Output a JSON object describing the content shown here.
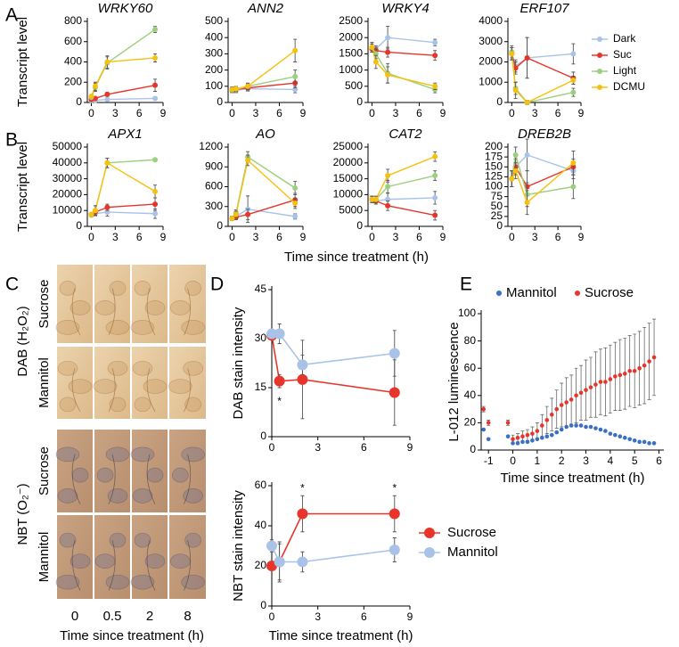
{
  "panel_labels": [
    "A",
    "B",
    "C",
    "D",
    "E"
  ],
  "photo_panel": {
    "stains": [
      {
        "label": "DAB (H₂O₂)",
        "rows": [
          "Sucrose",
          "Mannitol"
        ]
      },
      {
        "label": "NBT (O₂⁻)",
        "rows": [
          "Sucrose",
          "Mannitol"
        ]
      }
    ],
    "columns": [
      "0",
      "0.5",
      "2",
      "8"
    ],
    "xlabel": "Time since treatment (h)"
  },
  "chart_data": [
    {
      "type": "line",
      "title": "WRKY60",
      "ylabel": "Transcript level",
      "x": [
        0,
        0.5,
        2,
        8
      ],
      "xlim": [
        -0.5,
        9
      ],
      "xticks": [
        0,
        3,
        6,
        9
      ],
      "ylim": [
        0,
        800
      ],
      "yticks": [
        0,
        200,
        400,
        600,
        800
      ],
      "series": [
        {
          "name": "Dark",
          "color": "#a9c3e8",
          "values": [
            20,
            20,
            30,
            40
          ],
          "errors": [
            5,
            5,
            10,
            15
          ]
        },
        {
          "name": "Suc",
          "color": "#e8352b",
          "values": [
            30,
            40,
            80,
            170
          ],
          "errors": [
            10,
            10,
            20,
            60
          ]
        },
        {
          "name": "Light",
          "color": "#9ccf7e",
          "values": [
            50,
            150,
            390,
            720
          ],
          "errors": [
            20,
            40,
            60,
            30
          ]
        },
        {
          "name": "DCMU",
          "color": "#f5c10e",
          "values": [
            60,
            160,
            400,
            440
          ],
          "errors": [
            20,
            40,
            60,
            40
          ]
        }
      ]
    },
    {
      "type": "line",
      "title": "ANN2",
      "x": [
        0,
        0.5,
        2,
        8
      ],
      "xlim": [
        -0.5,
        9
      ],
      "xticks": [
        0,
        3,
        6,
        9
      ],
      "ylim": [
        0,
        500
      ],
      "yticks": [
        0,
        100,
        200,
        300,
        400,
        500
      ],
      "series": [
        {
          "name": "Dark",
          "color": "#a9c3e8",
          "values": [
            75,
            75,
            85,
            80
          ],
          "errors": [
            15,
            15,
            15,
            20
          ]
        },
        {
          "name": "Suc",
          "color": "#e8352b",
          "values": [
            80,
            80,
            90,
            120
          ],
          "errors": [
            15,
            15,
            15,
            30
          ]
        },
        {
          "name": "Light",
          "color": "#9ccf7e",
          "values": [
            75,
            80,
            100,
            160
          ],
          "errors": [
            15,
            15,
            15,
            40
          ]
        },
        {
          "name": "DCMU",
          "color": "#f5c10e",
          "values": [
            80,
            85,
            100,
            320
          ],
          "errors": [
            15,
            15,
            20,
            70
          ]
        }
      ]
    },
    {
      "type": "line",
      "title": "WRKY4",
      "x": [
        0,
        0.5,
        2,
        8
      ],
      "xlim": [
        -0.5,
        9
      ],
      "xticks": [
        0,
        3,
        6,
        9
      ],
      "ylim": [
        0,
        2500
      ],
      "yticks": [
        0,
        500,
        1000,
        1500,
        2000,
        2500
      ],
      "series": [
        {
          "name": "Dark",
          "color": "#a9c3e8",
          "values": [
            1700,
            1650,
            2000,
            1850
          ],
          "errors": [
            100,
            100,
            350,
            100
          ]
        },
        {
          "name": "Suc",
          "color": "#e8352b",
          "values": [
            1650,
            1600,
            1550,
            1450
          ],
          "errors": [
            100,
            100,
            150,
            150
          ]
        },
        {
          "name": "Light",
          "color": "#9ccf7e",
          "values": [
            1700,
            1500,
            900,
            400
          ],
          "errors": [
            150,
            150,
            300,
            100
          ]
        },
        {
          "name": "DCMU",
          "color": "#f5c10e",
          "values": [
            1700,
            1250,
            850,
            500
          ],
          "errors": [
            150,
            200,
            250,
            100
          ]
        }
      ]
    },
    {
      "type": "line",
      "title": "ERF107",
      "legend": "right",
      "x": [
        0,
        0.5,
        2,
        8
      ],
      "xlim": [
        -0.5,
        9
      ],
      "xticks": [
        0,
        3,
        6,
        9
      ],
      "ylim": [
        0,
        4000
      ],
      "yticks": [
        0,
        1000,
        2000,
        3000,
        4000
      ],
      "series": [
        {
          "name": "Dark",
          "color": "#a9c3e8",
          "values": [
            2400,
            1800,
            2200,
            2400
          ],
          "errors": [
            300,
            300,
            1000,
            500
          ]
        },
        {
          "name": "Suc",
          "color": "#e8352b",
          "values": [
            2400,
            1700,
            2200,
            1200
          ],
          "errors": [
            300,
            300,
            1000,
            300
          ]
        },
        {
          "name": "Light",
          "color": "#9ccf7e",
          "values": [
            2500,
            700,
            0,
            500
          ],
          "errors": [
            300,
            300,
            100,
            200
          ]
        },
        {
          "name": "DCMU",
          "color": "#f5c10e",
          "values": [
            2400,
            600,
            0,
            1100
          ],
          "errors": [
            300,
            400,
            100,
            200
          ]
        }
      ]
    },
    {
      "type": "line",
      "title": "APX1",
      "ylabel": "Transcript level",
      "xlabel": "Time since treatment (h)",
      "x": [
        0,
        0.5,
        2,
        8
      ],
      "xlim": [
        -0.5,
        9
      ],
      "xticks": [
        0,
        3,
        6,
        9
      ],
      "ylim": [
        0,
        50000
      ],
      "yticks": [
        0,
        10000,
        20000,
        30000,
        40000,
        50000
      ],
      "series": [
        {
          "name": "Dark",
          "color": "#a9c3e8",
          "values": [
            7500,
            8000,
            9000,
            8000
          ],
          "errors": [
            1000,
            1500,
            2500,
            3000
          ]
        },
        {
          "name": "Suc",
          "color": "#e8352b",
          "values": [
            7500,
            9000,
            12000,
            14000
          ],
          "errors": [
            1000,
            2000,
            2000,
            4000
          ]
        },
        {
          "name": "Light",
          "color": "#9ccf7e",
          "values": [
            7000,
            10000,
            40000,
            42000
          ],
          "errors": [
            1000,
            3000,
            3000,
            1000
          ]
        },
        {
          "name": "DCMU",
          "color": "#f5c10e",
          "values": [
            7500,
            10000,
            40000,
            22000
          ],
          "errors": [
            1000,
            3000,
            3000,
            4000
          ]
        }
      ]
    },
    {
      "type": "line",
      "title": "AO",
      "x": [
        0,
        0.5,
        2,
        8
      ],
      "xlim": [
        -0.5,
        9
      ],
      "xticks": [
        0,
        3,
        6,
        9
      ],
      "ylim": [
        0,
        1200
      ],
      "yticks": [
        0,
        300,
        600,
        900,
        1200
      ],
      "series": [
        {
          "name": "Dark",
          "color": "#a9c3e8",
          "values": [
            120,
            150,
            260,
            150
          ],
          "errors": [
            30,
            40,
            200,
            40
          ]
        },
        {
          "name": "Suc",
          "color": "#e8352b",
          "values": [
            120,
            140,
            180,
            400
          ],
          "errors": [
            30,
            40,
            80,
            100
          ]
        },
        {
          "name": "Light",
          "color": "#9ccf7e",
          "values": [
            120,
            200,
            1050,
            580
          ],
          "errors": [
            30,
            50,
            80,
            100
          ]
        },
        {
          "name": "DCMU",
          "color": "#f5c10e",
          "values": [
            120,
            180,
            1000,
            350
          ],
          "errors": [
            30,
            50,
            80,
            80
          ]
        }
      ]
    },
    {
      "type": "line",
      "title": "CAT2",
      "x": [
        0,
        0.5,
        2,
        8
      ],
      "xlim": [
        -0.5,
        9
      ],
      "xticks": [
        0,
        3,
        6,
        9
      ],
      "ylim": [
        0,
        25000
      ],
      "yticks": [
        0,
        5000,
        10000,
        15000,
        20000,
        25000
      ],
      "series": [
        {
          "name": "Dark",
          "color": "#a9c3e8",
          "values": [
            8500,
            8000,
            8500,
            9000
          ],
          "errors": [
            1000,
            1000,
            2000,
            2000
          ]
        },
        {
          "name": "Suc",
          "color": "#e8352b",
          "values": [
            8500,
            8000,
            6500,
            3500
          ],
          "errors": [
            1000,
            1000,
            1500,
            1500
          ]
        },
        {
          "name": "Light",
          "color": "#9ccf7e",
          "values": [
            8500,
            8500,
            12500,
            16000
          ],
          "errors": [
            1000,
            1000,
            2000,
            1500
          ]
        },
        {
          "name": "DCMU",
          "color": "#f5c10e",
          "values": [
            8500,
            8500,
            16000,
            22000
          ],
          "errors": [
            1000,
            1000,
            2000,
            1500
          ]
        }
      ]
    },
    {
      "type": "line",
      "title": "DREB2B",
      "x": [
        0,
        0.5,
        2,
        8
      ],
      "xlim": [
        -0.5,
        9
      ],
      "xticks": [
        0,
        3,
        6,
        9
      ],
      "ylim": [
        0,
        200
      ],
      "yticks": [
        0,
        25,
        50,
        75,
        100,
        125,
        150,
        175,
        200
      ],
      "series": [
        {
          "name": "Dark",
          "color": "#a9c3e8",
          "values": [
            120,
            150,
            180,
            140
          ],
          "errors": [
            20,
            20,
            40,
            20
          ]
        },
        {
          "name": "Suc",
          "color": "#e8352b",
          "values": [
            120,
            150,
            100,
            150
          ],
          "errors": [
            20,
            20,
            40,
            20
          ]
        },
        {
          "name": "Light",
          "color": "#9ccf7e",
          "values": [
            120,
            180,
            80,
            100
          ],
          "errors": [
            20,
            20,
            30,
            30
          ]
        },
        {
          "name": "DCMU",
          "color": "#f5c10e",
          "values": [
            120,
            140,
            60,
            160
          ],
          "errors": [
            20,
            20,
            30,
            30
          ]
        }
      ]
    },
    {
      "type": "line",
      "ylabel": "DAB stain intensity",
      "x": [
        0,
        0.5,
        2,
        8
      ],
      "xlim": [
        0,
        9
      ],
      "xticks": [
        0,
        3,
        6,
        9
      ],
      "ylim": [
        0,
        45
      ],
      "yticks": [
        0,
        15,
        30,
        45
      ],
      "annotations": [
        {
          "text": "*",
          "x": 0.5,
          "position": "below"
        }
      ],
      "series": [
        {
          "name": "Sucrose",
          "color": "#e8352b",
          "values": [
            31,
            17,
            17.5,
            13.5
          ],
          "errors": [
            1,
            2,
            12,
            10
          ]
        },
        {
          "name": "Mannitol",
          "color": "#a9c3e8",
          "values": [
            31.5,
            31.5,
            22,
            25.5
          ],
          "errors": [
            1,
            3,
            3,
            7
          ]
        }
      ]
    },
    {
      "type": "line",
      "ylabel": "NBT stain intensity",
      "xlabel": "Time since treatment (h)",
      "legend": "right",
      "x": [
        0,
        0.5,
        2,
        8
      ],
      "xlim": [
        0,
        9
      ],
      "xticks": [
        0,
        3,
        6,
        9
      ],
      "ylim": [
        0,
        60
      ],
      "yticks": [
        0,
        20,
        40,
        60
      ],
      "annotations": [
        {
          "text": "*",
          "x": 2,
          "position": "above"
        },
        {
          "text": "*",
          "x": 8,
          "position": "above"
        }
      ],
      "series": [
        {
          "name": "Sucrose",
          "color": "#e8352b",
          "values": [
            20,
            22,
            46,
            46
          ],
          "errors": [
            2,
            10,
            9,
            9
          ]
        },
        {
          "name": "Mannitol",
          "color": "#a9c3e8",
          "values": [
            30,
            22,
            22,
            28
          ],
          "errors": [
            3,
            9,
            5,
            6
          ]
        }
      ]
    },
    {
      "type": "scatter",
      "ylabel": "L-012 luminescence",
      "xlabel": "Time since treatment (h)",
      "legend": "top",
      "x": [
        -1.2,
        -1.0,
        -0.2,
        0,
        0.2,
        0.4,
        0.6,
        0.8,
        1,
        1.2,
        1.4,
        1.6,
        1.8,
        2,
        2.2,
        2.4,
        2.6,
        2.8,
        3,
        3.2,
        3.4,
        3.6,
        3.8,
        4,
        4.2,
        4.4,
        4.6,
        4.8,
        5,
        5.2,
        5.4,
        5.6,
        5.8
      ],
      "xlim": [
        -1.3,
        6.2
      ],
      "xticks": [
        -1,
        0,
        1,
        2,
        3,
        4,
        5,
        6
      ],
      "ylim": [
        0,
        100
      ],
      "yticks": [
        0,
        20,
        40,
        60,
        80,
        100
      ],
      "series": [
        {
          "name": "Mannitol",
          "color": "#3a6fc4",
          "values": [
            15,
            8,
            10,
            5,
            5,
            6,
            6,
            7,
            8,
            9,
            10,
            11,
            13,
            15,
            17,
            18,
            18,
            18,
            17,
            17,
            16,
            15,
            14,
            12,
            11,
            10,
            9,
            8,
            7,
            6,
            6,
            5,
            5
          ]
        },
        {
          "name": "Sucrose",
          "color": "#e8352b",
          "values": [
            30,
            20,
            20,
            8,
            9,
            10,
            11,
            12,
            14,
            18,
            22,
            26,
            30,
            33,
            35,
            37,
            40,
            42,
            44,
            46,
            48,
            50,
            50,
            52,
            54,
            55,
            56,
            58,
            58,
            60,
            62,
            65,
            68
          ],
          "errors": [
            2,
            2,
            2,
            3,
            3,
            4,
            4,
            5,
            6,
            8,
            10,
            12,
            14,
            16,
            18,
            18,
            20,
            20,
            22,
            22,
            24,
            24,
            25,
            25,
            25,
            26,
            26,
            26,
            27,
            27,
            28,
            28,
            28
          ]
        }
      ]
    }
  ]
}
